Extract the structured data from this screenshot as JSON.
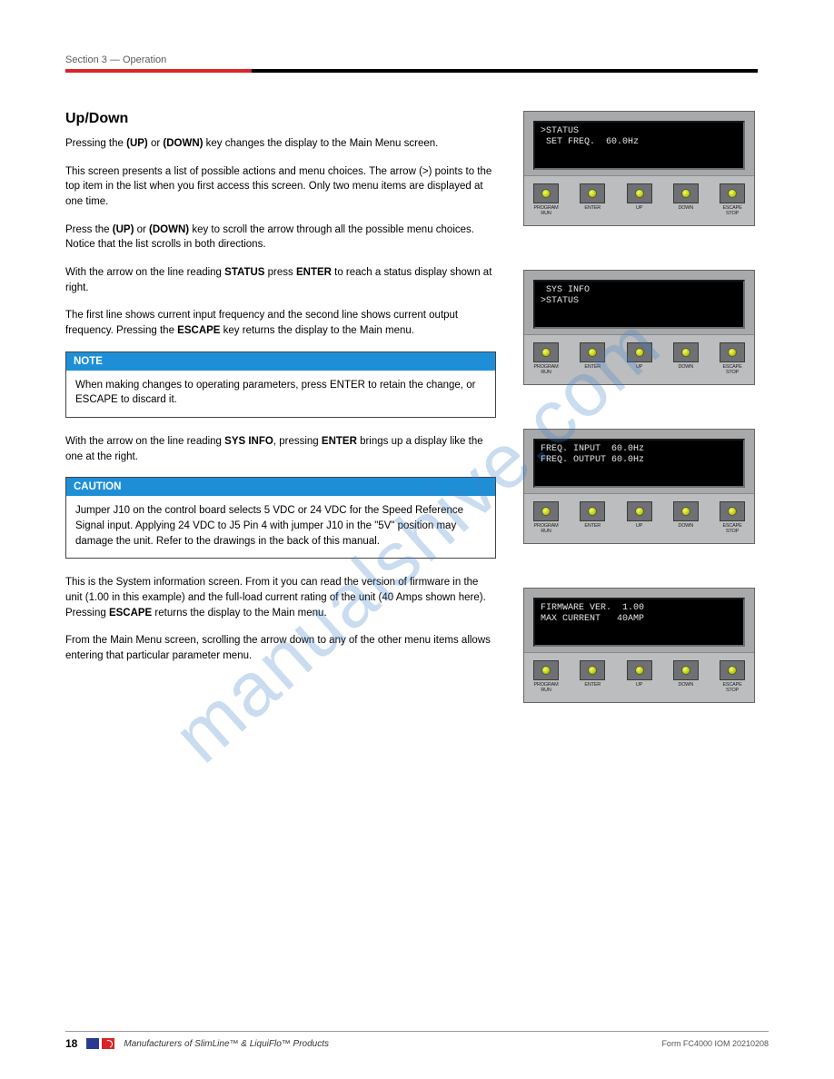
{
  "header": {
    "section_label": "Section 3 — Operation"
  },
  "left": {
    "h_updown": "Up/Down",
    "p1_a": "Pressing the ",
    "p1_b": "(UP)",
    "p1_c": " or ",
    "p1_d": "(DOWN)",
    "p1_e": " key changes the display to the Main Menu screen.",
    "p2": "This screen presents a list of possible actions and menu choices. The arrow (>) points to the top item in the list when you first access this screen. Only two menu items are displayed at one time.",
    "p3_a": "Press the ",
    "p3_b": "(UP)",
    "p3_c": " or ",
    "p3_d": "(DOWN)",
    "p3_e": " key to scroll the arrow through all the possible menu choices. Notice that the list scrolls in both directions.",
    "p4_a": "With the arrow on the line reading ",
    "p4_b": "STATUS",
    "p4_c": " press ",
    "p4_d": "ENTER",
    "p4_e": " to reach a status display shown at right.",
    "p5_a": "The first line shows current input frequency and the second line shows current output frequency. Pressing the ",
    "p5_b": "ESCAPE",
    "p5_c": " key returns the display to the Main menu.",
    "note_hdr": "NOTE",
    "note_body": "When making changes to operating parameters, press ENTER to retain the change, or ESCAPE to discard it.",
    "p6_a": "With the arrow on the line reading ",
    "p6_b": "SYS INFO",
    "p6_c": ", pressing ",
    "p6_d": "ENTER",
    "p6_e": " brings up a display like the one at the right.",
    "caution_hdr": "CAUTION",
    "caution_body": "Jumper J10 on the control board selects 5 VDC or 24 VDC for the Speed Reference Signal input. Applying 24 VDC to J5 Pin 4 with jumper J10 in the \"5V\" position may damage the unit. Refer to the drawings in the back of this manual.",
    "p7_a": "This is the System information screen. From it you can read the version of firmware in the unit (1.00 in this example) and the full-load current rating of the unit (40 Amps shown here). Pressing ",
    "p7_b": "ESCAPE",
    "p7_c": " returns the display to the Main menu.",
    "p8": "From the Main Menu screen, scrolling the arrow down to any of the other menu items allows entering that particular parameter menu."
  },
  "devices": [
    {
      "line1": ">STATUS",
      "line2": " SET FREQ.  60.0Hz"
    },
    {
      "line1": " SYS INFO",
      "line2": ">STATUS"
    },
    {
      "line1": "FREQ. INPUT  60.0Hz",
      "line2": "FREQ. OUTPUT 60.0Hz"
    },
    {
      "line1": "FIRMWARE VER.  1.00",
      "line2": "MAX CURRENT   40AMP"
    }
  ],
  "button_labels": [
    "PROGRAM RUN",
    "ENTER",
    "UP",
    "DOWN",
    "ESCAPE STOP"
  ],
  "footer": {
    "page": "18",
    "mfg": "Manufacturers of SlimLine™ & LiquiFlo™ Products",
    "rev": "Form FC4000 IOM 20210208"
  },
  "colors": {
    "accent_red": "#d9252a",
    "box_blue": "#1e8fd6",
    "device_grey_top": "#a8a9ab",
    "device_grey_bottom": "#bcbdbf",
    "btn_grey": "#6f7073",
    "led_yellow": "#e8f03a"
  },
  "watermark": "manualshive.com"
}
